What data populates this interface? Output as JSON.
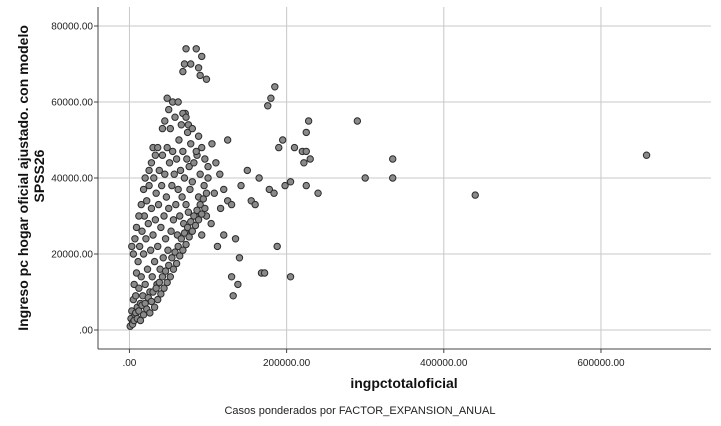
{
  "chart_data": {
    "type": "scatter",
    "title": "",
    "xlabel": "ingpctotaloficial",
    "ylabel": "Ingreso pc hogar oficial ajustado. con modelo",
    "ylabel_line2": "SPSS26",
    "caption": "Casos ponderados por FACTOR_EXPANSION_ANUAL",
    "xlim": [
      -40000,
      740000
    ],
    "ylim": [
      -5000,
      85000
    ],
    "grid": true,
    "x_ticks": [
      {
        "value": 0,
        "label": ".00"
      },
      {
        "value": 200000,
        "label": "200000.00"
      },
      {
        "value": 400000,
        "label": "400000.00"
      },
      {
        "value": 600000,
        "label": "600000.00"
      }
    ],
    "y_ticks": [
      {
        "value": 0,
        "label": ".00"
      },
      {
        "value": 20000,
        "label": "20000.00"
      },
      {
        "value": 40000,
        "label": "40000.00"
      },
      {
        "value": 60000,
        "label": "60000.00"
      },
      {
        "value": 80000,
        "label": "80000.00"
      }
    ],
    "colors": {
      "marker_fill": "#8a8a8a",
      "marker_stroke": "#2b2b2b",
      "grid": "#c8c8c8",
      "axis": "#444444"
    },
    "series": [
      {
        "points": [
          [
            1000,
            1000
          ],
          [
            2000,
            3000
          ],
          [
            3000,
            5000
          ],
          [
            4000,
            2000
          ],
          [
            5000,
            8000
          ],
          [
            6000,
            12000
          ],
          [
            7000,
            4000
          ],
          [
            8000,
            9000
          ],
          [
            9000,
            15000
          ],
          [
            10000,
            6000
          ],
          [
            11000,
            18000
          ],
          [
            12000,
            11000
          ],
          [
            13000,
            22000
          ],
          [
            14000,
            7000
          ],
          [
            15000,
            14000
          ],
          [
            16000,
            26000
          ],
          [
            17000,
            9000
          ],
          [
            18000,
            20000
          ],
          [
            19000,
            30000
          ],
          [
            20000,
            12000
          ],
          [
            21000,
            24000
          ],
          [
            22000,
            34000
          ],
          [
            23000,
            16000
          ],
          [
            24000,
            28000
          ],
          [
            25000,
            38000
          ],
          [
            26000,
            10000
          ],
          [
            27000,
            21000
          ],
          [
            28000,
            32000
          ],
          [
            29000,
            14000
          ],
          [
            30000,
            25000
          ],
          [
            31000,
            40000
          ],
          [
            32000,
            18000
          ],
          [
            33000,
            29000
          ],
          [
            34000,
            36000
          ],
          [
            35000,
            12000
          ],
          [
            36000,
            22000
          ],
          [
            37000,
            33000
          ],
          [
            38000,
            42000
          ],
          [
            39000,
            16000
          ],
          [
            40000,
            27000
          ],
          [
            41000,
            38000
          ],
          [
            42000,
            46000
          ],
          [
            43000,
            19000
          ],
          [
            44000,
            30000
          ],
          [
            45000,
            41000
          ],
          [
            46000,
            24000
          ],
          [
            47000,
            35000
          ],
          [
            48000,
            48000
          ],
          [
            49000,
            21000
          ],
          [
            50000,
            32000
          ],
          [
            51000,
            44000
          ],
          [
            52000,
            53000
          ],
          [
            53000,
            26000
          ],
          [
            54000,
            38000
          ],
          [
            55000,
            47000
          ],
          [
            56000,
            29000
          ],
          [
            57000,
            41000
          ],
          [
            58000,
            56000
          ],
          [
            59000,
            33000
          ],
          [
            60000,
            45000
          ],
          [
            61000,
            25000
          ],
          [
            62000,
            37000
          ],
          [
            63000,
            50000
          ],
          [
            64000,
            30000
          ],
          [
            65000,
            42000
          ],
          [
            66000,
            54000
          ],
          [
            67000,
            35000
          ],
          [
            68000,
            47000
          ],
          [
            69000,
            28000
          ],
          [
            70000,
            40000
          ],
          [
            71000,
            57000
          ],
          [
            72000,
            33000
          ],
          [
            73000,
            45000
          ],
          [
            74000,
            52000
          ],
          [
            75000,
            31000
          ],
          [
            76000,
            43000
          ],
          [
            77000,
            37000
          ],
          [
            78000,
            49000
          ],
          [
            79000,
            26000
          ],
          [
            80000,
            39000
          ],
          [
            82000,
            44000
          ],
          [
            84000,
            30000
          ],
          [
            86000,
            46000
          ],
          [
            88000,
            35000
          ],
          [
            90000,
            41000
          ],
          [
            92000,
            25000
          ],
          [
            95000,
            38000
          ],
          [
            98000,
            30000
          ],
          [
            100000,
            43000
          ],
          [
            104000,
            28000
          ],
          [
            108000,
            36000
          ],
          [
            112000,
            22000
          ],
          [
            116000,
            32000
          ],
          [
            120000,
            25000
          ],
          [
            125000,
            34000
          ],
          [
            130000,
            14000
          ],
          [
            135000,
            24000
          ],
          [
            140000,
            19000
          ],
          [
            4000,
            1500
          ],
          [
            6000,
            2500
          ],
          [
            8000,
            4500
          ],
          [
            10000,
            3000
          ],
          [
            12000,
            5000
          ],
          [
            14000,
            2500
          ],
          [
            16000,
            6500
          ],
          [
            18000,
            4000
          ],
          [
            20000,
            7000
          ],
          [
            22000,
            5500
          ],
          [
            24000,
            8500
          ],
          [
            26000,
            4500
          ],
          [
            28000,
            7500
          ],
          [
            30000,
            10000
          ],
          [
            32000,
            6000
          ],
          [
            34000,
            11000
          ],
          [
            36000,
            8000
          ],
          [
            38000,
            12500
          ],
          [
            40000,
            9500
          ],
          [
            42000,
            14000
          ],
          [
            44000,
            11000
          ],
          [
            46000,
            15500
          ],
          [
            48000,
            12500
          ],
          [
            50000,
            17000
          ],
          [
            52000,
            14000
          ],
          [
            54000,
            19000
          ],
          [
            56000,
            16000
          ],
          [
            58000,
            20500
          ],
          [
            60000,
            17500
          ],
          [
            62000,
            22000
          ],
          [
            64000,
            19500
          ],
          [
            66000,
            24000
          ],
          [
            68000,
            21000
          ],
          [
            70000,
            25500
          ],
          [
            72000,
            22500
          ],
          [
            74000,
            27000
          ],
          [
            76000,
            24500
          ],
          [
            78000,
            28500
          ],
          [
            80000,
            26000
          ],
          [
            82000,
            30000
          ],
          [
            84000,
            27500
          ],
          [
            86000,
            31500
          ],
          [
            88000,
            29000
          ],
          [
            90000,
            33000
          ],
          [
            92000,
            30500
          ],
          [
            94000,
            34500
          ],
          [
            96000,
            32000
          ],
          [
            98000,
            36000
          ],
          [
            5000,
            20000
          ],
          [
            3000,
            22000
          ],
          [
            7000,
            24000
          ],
          [
            9000,
            27000
          ],
          [
            12000,
            30000
          ],
          [
            15000,
            33000
          ],
          [
            18000,
            37000
          ],
          [
            20000,
            40000
          ],
          [
            25000,
            42000
          ],
          [
            28000,
            44000
          ],
          [
            30000,
            48000
          ],
          [
            33000,
            46000
          ],
          [
            36000,
            48000
          ],
          [
            42000,
            53000
          ],
          [
            45000,
            55000
          ],
          [
            50000,
            58000
          ],
          [
            55000,
            60000
          ],
          [
            48000,
            61000
          ],
          [
            62000,
            60000
          ],
          [
            68000,
            57000
          ],
          [
            72000,
            56000
          ],
          [
            75000,
            54000
          ],
          [
            80000,
            53000
          ],
          [
            85000,
            47000
          ],
          [
            88000,
            51000
          ],
          [
            92000,
            48000
          ],
          [
            96000,
            45000
          ],
          [
            100000,
            40000
          ],
          [
            72000,
            74000
          ],
          [
            85000,
            74000
          ],
          [
            70000,
            70000
          ],
          [
            78000,
            70000
          ],
          [
            88000,
            69000
          ],
          [
            92000,
            72000
          ],
          [
            90000,
            67000
          ],
          [
            98000,
            66000
          ],
          [
            68000,
            68000
          ],
          [
            105000,
            49000
          ],
          [
            110000,
            44000
          ],
          [
            115000,
            41000
          ],
          [
            120000,
            37000
          ],
          [
            125000,
            50000
          ],
          [
            130000,
            33000
          ],
          [
            132000,
            9000
          ],
          [
            138000,
            12000
          ],
          [
            142000,
            38000
          ],
          [
            150000,
            42000
          ],
          [
            155000,
            34000
          ],
          [
            160000,
            33000
          ],
          [
            165000,
            40000
          ],
          [
            168000,
            15000
          ],
          [
            172000,
            15000
          ],
          [
            176000,
            59000
          ],
          [
            180000,
            61000
          ],
          [
            185000,
            64000
          ],
          [
            178000,
            37000
          ],
          [
            184000,
            36000
          ],
          [
            190000,
            48000
          ],
          [
            195000,
            50000
          ],
          [
            198000,
            38000
          ],
          [
            205000,
            39000
          ],
          [
            210000,
            48000
          ],
          [
            220000,
            47000
          ],
          [
            222000,
            44000
          ],
          [
            225000,
            52000
          ],
          [
            228000,
            55000
          ],
          [
            225000,
            47000
          ],
          [
            230000,
            45000
          ],
          [
            225000,
            38000
          ],
          [
            240000,
            36000
          ],
          [
            188000,
            22000
          ],
          [
            205000,
            14000
          ],
          [
            290000,
            55000
          ],
          [
            300000,
            40000
          ],
          [
            335000,
            45000
          ],
          [
            335000,
            40000
          ],
          [
            440000,
            35500
          ],
          [
            658000,
            46000
          ]
        ]
      }
    ]
  }
}
